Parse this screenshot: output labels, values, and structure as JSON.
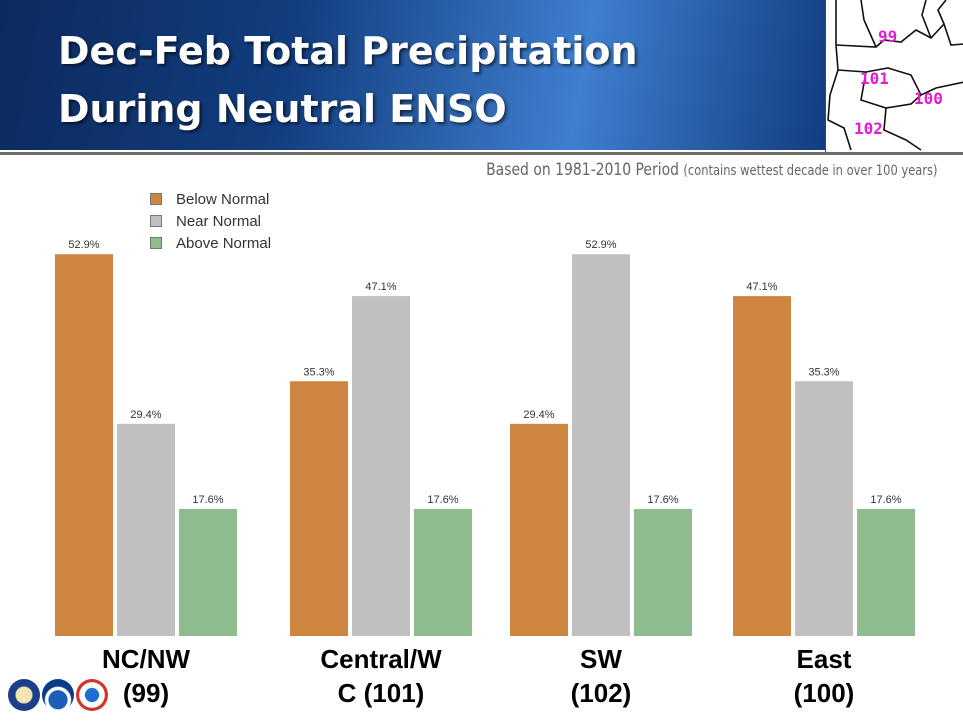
{
  "header": {
    "title_line1": "Dec-Feb Total Precipitation",
    "title_line2": "During Neutral ENSO"
  },
  "subtitle": {
    "main": "Based on 1981-2010 Period",
    "note": "(contains wettest decade in over 100 years)"
  },
  "map": {
    "labels": [
      "99",
      "101",
      "100",
      "102"
    ],
    "label_color": "#e020d0"
  },
  "colors": {
    "header_dark": "#0c2a5e",
    "header_light": "#3f7fcf",
    "below": "#cd853f",
    "near": "#c0c0c0",
    "above": "#8fbc8f"
  },
  "chart_data": {
    "type": "bar",
    "categories": [
      "NC/NW (99)",
      "Central/W C (101)",
      "SW (102)",
      "East (100)"
    ],
    "category_labels": [
      [
        "NC/NW",
        "(99)"
      ],
      [
        "Central/W",
        "C (101)"
      ],
      [
        "SW",
        "(102)"
      ],
      [
        "East",
        "(100)"
      ]
    ],
    "series": [
      {
        "name": "Below Normal",
        "values": [
          52.9,
          35.3,
          29.4,
          47.1
        ],
        "labels": [
          "52.9%",
          "35.3%",
          "29.4%",
          "47.1%"
        ]
      },
      {
        "name": "Near Normal",
        "values": [
          29.4,
          47.1,
          52.9,
          35.3
        ],
        "labels": [
          "29.4%",
          "47.1%",
          "52.9%",
          "35.3%"
        ]
      },
      {
        "name": "Above Normal",
        "values": [
          17.6,
          17.6,
          17.6,
          17.6
        ],
        "labels": [
          "17.6%",
          "17.6%",
          "17.6%",
          "17.6%"
        ]
      }
    ],
    "legend_position": "top-left",
    "grid": false,
    "ylim": [
      0,
      60
    ]
  },
  "logos": [
    "doc-seal-icon",
    "noaa-icon",
    "nws-icon"
  ]
}
